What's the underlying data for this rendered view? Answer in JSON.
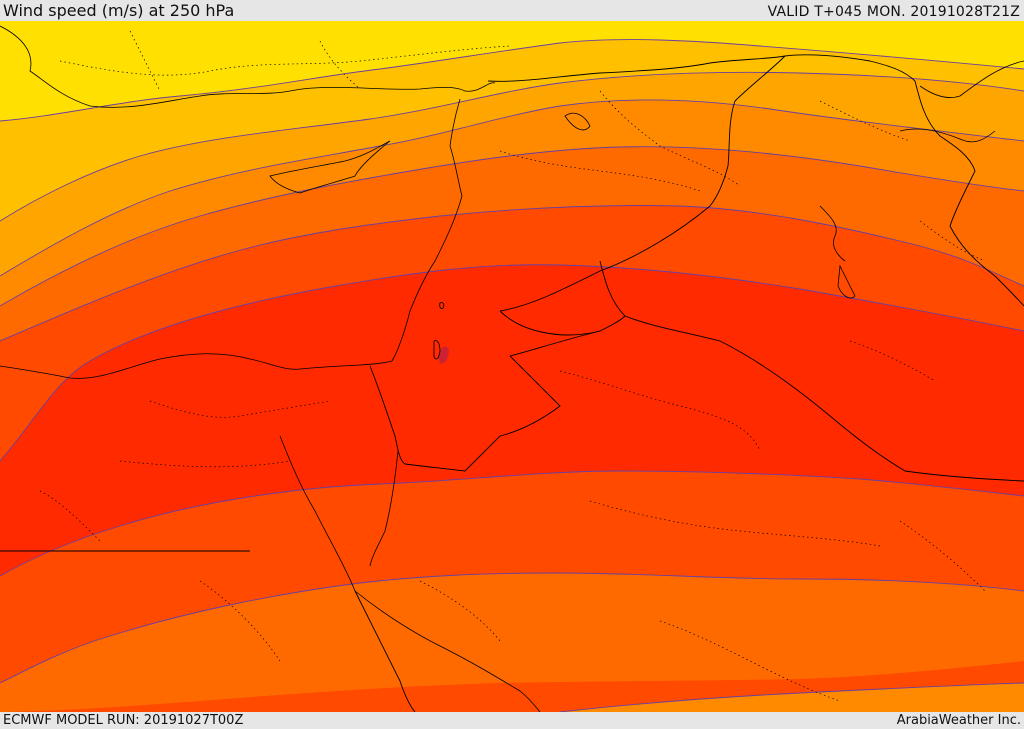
{
  "header": {
    "title": "Wind speed (m/s) at 250 hPa",
    "valid": "VALID T+045 MON. 20191028T21Z"
  },
  "footer": {
    "model_run": "ECMWF MODEL RUN: 20191027T00Z",
    "credit": "ArabiaWeather Inc."
  },
  "map": {
    "field": "wind-speed",
    "region": "Eastern Mediterranean and Middle East",
    "palette": {
      "band_1": "#ffe000",
      "band_2": "#ffc000",
      "band_3": "#ffa500",
      "band_4": "#ff8a00",
      "band_5": "#ff6a00",
      "band_6": "#ff4a00",
      "band_7": "#ff2a00",
      "band_8": "#ff1a00",
      "max_core": "#cc2233",
      "contour": "#6a3fa0",
      "border": "#000000"
    }
  }
}
